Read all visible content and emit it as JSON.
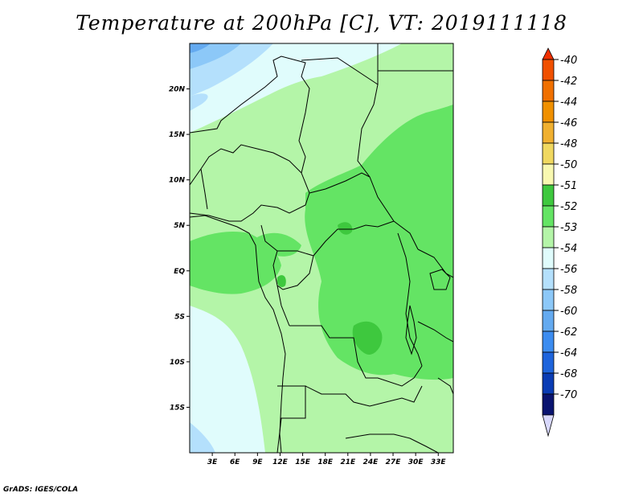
{
  "title": "Temperature at 200hPa [C], VT: 2019111118",
  "footer": "GrADS: IGES/COLA",
  "map": {
    "lat_labels": [
      "20N",
      "15N",
      "10N",
      "5N",
      "EQ",
      "5S",
      "10S",
      "15S"
    ],
    "lat_values": [
      20,
      15,
      10,
      5,
      0,
      -5,
      -10,
      -15
    ],
    "lon_labels": [
      "3E",
      "6E",
      "9E",
      "12E",
      "15E",
      "18E",
      "21E",
      "24E",
      "27E",
      "30E",
      "33E"
    ],
    "lon_values": [
      3,
      6,
      9,
      12,
      15,
      18,
      21,
      24,
      27,
      30,
      33
    ],
    "lon_range": [
      0,
      35
    ],
    "lat_range": [
      -20,
      25
    ]
  },
  "colorbar": {
    "labels": [
      "-40",
      "-42",
      "-44",
      "-46",
      "-48",
      "-50",
      "-51",
      "-52",
      "-53",
      "-54",
      "-56",
      "-58",
      "-60",
      "-62",
      "-64",
      "-68",
      "-70"
    ],
    "colors": [
      "#f03000",
      "#f05000",
      "#f07000",
      "#f09000",
      "#f0b030",
      "#f0d860",
      "#f8f8b0",
      "#3ec83e",
      "#64e464",
      "#b4f5a8",
      "#e0fcfc",
      "#b4e0fc",
      "#8cc8f8",
      "#64aaf0",
      "#3c8cf0",
      "#1e64dc",
      "#0a3cb4",
      "#0a1470",
      "#d8d8fc"
    ]
  }
}
